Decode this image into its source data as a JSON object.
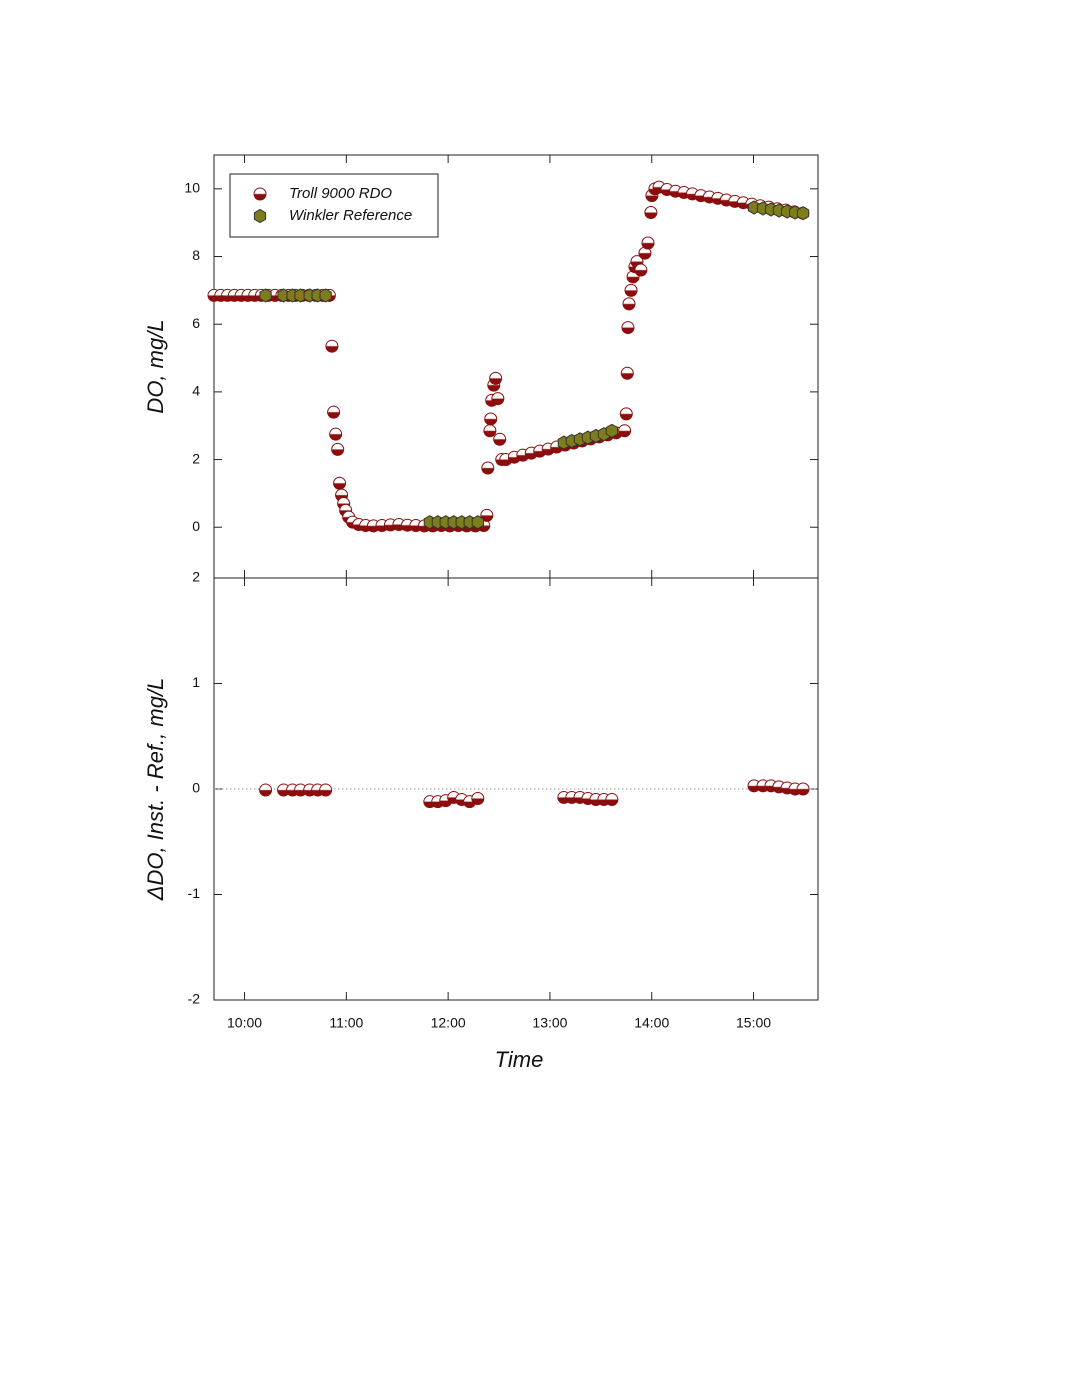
{
  "chart_data": [
    {
      "type": "scatter",
      "ylabel": "DO, mg/L",
      "legend": "upper left",
      "xlim": [
        582,
        938
      ],
      "ylim": [
        -1.5,
        11
      ],
      "yticks": [
        0,
        2,
        4,
        6,
        8,
        10
      ],
      "series": [
        {
          "name": "Troll 9000 RDO",
          "color": "#8b0d0d",
          "marker": "half-circle",
          "x": [
            582,
            586,
            590,
            594,
            598,
            602,
            606,
            610,
            614,
            618,
            622,
            626,
            630,
            634,
            638,
            642,
            646,
            650,
            651.5,
            652.5,
            653.7,
            654.9,
            656,
            657.2,
            658.4,
            659.6,
            661.4,
            663.7,
            667.3,
            671.4,
            676,
            681,
            686,
            691,
            696,
            701,
            706,
            711,
            716,
            721,
            726,
            731,
            736,
            741,
            742.8,
            743.4,
            744.6,
            745.1,
            745.7,
            746.9,
            748,
            749.3,
            750.4,
            751.6,
            754,
            759,
            764,
            769,
            774,
            779,
            784,
            789,
            794,
            799,
            804,
            809,
            814,
            819,
            824,
            825,
            825.6,
            826,
            826.6,
            827.8,
            829,
            830.1,
            831.3,
            833.6,
            836,
            837.8,
            839.5,
            840.1,
            841.9,
            844.3,
            849,
            854,
            859,
            864,
            869,
            874,
            879,
            884,
            889,
            894,
            899,
            904,
            909,
            914,
            919,
            924,
            929
          ],
          "values": [
            6.85,
            6.85,
            6.85,
            6.85,
            6.85,
            6.85,
            6.85,
            6.85,
            6.85,
            6.85,
            6.85,
            6.85,
            6.85,
            6.85,
            6.85,
            6.85,
            6.85,
            6.85,
            5.35,
            3.4,
            2.75,
            2.3,
            1.3,
            0.95,
            0.7,
            0.5,
            0.3,
            0.15,
            0.08,
            0.05,
            0.04,
            0.05,
            0.07,
            0.08,
            0.06,
            0.05,
            0.04,
            0.04,
            0.05,
            0.04,
            0.05,
            0.04,
            0.04,
            0.05,
            0.35,
            1.75,
            2.85,
            3.2,
            3.75,
            4.2,
            4.4,
            3.8,
            2.6,
            2.0,
            2.0,
            2.07,
            2.13,
            2.19,
            2.25,
            2.31,
            2.37,
            2.43,
            2.49,
            2.55,
            2.61,
            2.67,
            2.73,
            2.79,
            2.85,
            3.35,
            4.55,
            5.9,
            6.6,
            7.0,
            7.4,
            7.7,
            7.85,
            7.6,
            8.1,
            8.4,
            9.3,
            9.8,
            10.0,
            10.05,
            9.98,
            9.93,
            9.89,
            9.85,
            9.8,
            9.76,
            9.72,
            9.67,
            9.63,
            9.59,
            9.55,
            9.5,
            9.46,
            9.41,
            9.37,
            9.32,
            9.28
          ]
        },
        {
          "name": "Winkler Reference",
          "color": "#7d7d1c",
          "marker": "hexagon",
          "x": [
            612.4,
            623,
            628.3,
            633,
            638.4,
            643.1,
            647.8,
            709.2,
            713.9,
            718.6,
            723.3,
            728,
            732.7,
            737.5,
            788.2,
            792.9,
            797.7,
            802.4,
            807.1,
            811.8,
            816.5,
            900.3,
            905.6,
            910.3,
            915,
            919.8,
            924.5,
            929.2
          ],
          "values": [
            6.85,
            6.85,
            6.85,
            6.85,
            6.85,
            6.85,
            6.85,
            0.15,
            0.15,
            0.15,
            0.15,
            0.15,
            0.15,
            0.15,
            2.5,
            2.55,
            2.6,
            2.65,
            2.7,
            2.75,
            2.85,
            9.45,
            9.42,
            9.39,
            9.36,
            9.33,
            9.3,
            9.28
          ]
        }
      ]
    },
    {
      "type": "scatter",
      "ylabel": "ΔDO, Inst. - Ref., mg/L",
      "xlabel": "Time",
      "zero_line": true,
      "xlim": [
        582,
        938
      ],
      "ylim": [
        -2,
        2
      ],
      "yticks": [
        -2,
        -1,
        0,
        1,
        2
      ],
      "xticks": [
        {
          "value": 600,
          "label": "10:00"
        },
        {
          "value": 660,
          "label": "11:00"
        },
        {
          "value": 720,
          "label": "12:00"
        },
        {
          "value": 780,
          "label": "13:00"
        },
        {
          "value": 840,
          "label": "14:00"
        },
        {
          "value": 900,
          "label": "15:00"
        }
      ],
      "series": [
        {
          "color": "#8b0d0d",
          "marker": "half-circle",
          "x": [
            612.4,
            623,
            628.3,
            633,
            638.4,
            643.1,
            647.8,
            709.2,
            713.9,
            718.6,
            723.3,
            728,
            732.7,
            737.5,
            788.2,
            792.9,
            797.7,
            802.4,
            807.1,
            811.8,
            816.5,
            900.3,
            905.6,
            910.3,
            915,
            919.8,
            924.5,
            929.2
          ],
          "values": [
            -0.01,
            -0.01,
            -0.01,
            -0.01,
            -0.01,
            -0.01,
            -0.01,
            -0.12,
            -0.12,
            -0.11,
            -0.08,
            -0.1,
            -0.12,
            -0.09,
            -0.08,
            -0.08,
            -0.08,
            -0.09,
            -0.1,
            -0.1,
            -0.1,
            0.03,
            0.03,
            0.03,
            0.02,
            0.01,
            0,
            0
          ]
        }
      ]
    }
  ]
}
